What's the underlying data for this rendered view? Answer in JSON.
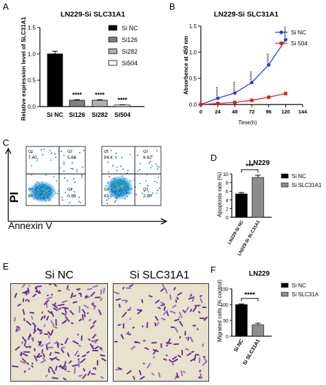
{
  "colors": {
    "black": "#000000",
    "grey": "#808080",
    "blue": "#1f3fd6",
    "red": "#e0201a",
    "stain": "#6a2c9a",
    "membrane": "#e6e2cc"
  },
  "panels": [
    {
      "letter": "A"
    },
    {
      "letter": "B"
    },
    {
      "letter": "C"
    },
    {
      "letter": "D"
    },
    {
      "letter": "E"
    },
    {
      "letter": "F"
    }
  ],
  "chart_data": [
    {
      "panel": "A",
      "type": "bar",
      "title": "LN229-Si SLC31A1",
      "ylabel": "Relative expression level of SLC31A1",
      "ylim": [
        0,
        1.5
      ],
      "yticks": [
        "0.0",
        "0.5",
        "1.0",
        "1.5"
      ],
      "categories": [
        "Si NC",
        "Si126",
        "Si282",
        "Si504"
      ],
      "values": [
        1.0,
        0.12,
        0.12,
        0.03
      ],
      "errors": [
        0.05,
        0.01,
        0.01,
        0.005
      ],
      "significance": [
        "",
        "****",
        "****",
        "****"
      ],
      "legend": [
        "Si NC",
        "Si126",
        "Si282",
        "Si504"
      ],
      "legend_position": "top-right"
    },
    {
      "panel": "B",
      "type": "line",
      "title": "LN229-Si SLC31A1",
      "xlabel": "Time(h)",
      "ylabel": "Absorbence at 450 nm",
      "xlim": [
        0,
        144
      ],
      "ylim": [
        0,
        1.5
      ],
      "xticks": [
        "0",
        "24",
        "48",
        "72",
        "96",
        "120",
        "144"
      ],
      "yticks": [
        "0.0",
        "0.5",
        "1.0",
        "1.5"
      ],
      "x": [
        0,
        24,
        48,
        72,
        96,
        120
      ],
      "series": [
        {
          "name": "Si NC",
          "values": [
            0.0,
            0.12,
            0.22,
            0.42,
            0.76,
            1.24
          ]
        },
        {
          "name": "Si 504",
          "values": [
            0.0,
            0.02,
            0.04,
            0.08,
            0.14,
            0.21
          ]
        }
      ],
      "significance": [
        "",
        "*****",
        "*****",
        "*****",
        "*****",
        "******"
      ],
      "legend_position": "top-right"
    },
    {
      "panel": "C",
      "type": "scatter",
      "xlabel": "Annexin V",
      "ylabel": "PI",
      "plots": [
        {
          "quadrants": {
            "Q1": "7.40",
            "Q2": "5.66",
            "Q3": "0.98",
            "Q4": "86.0"
          }
        },
        {
          "quadrants": {
            "Q1": "24.4",
            "Q2": "9.62",
            "Q3": "2.90",
            "Q4": "63.0"
          }
        }
      ]
    },
    {
      "panel": "D",
      "type": "bar",
      "title": "LN229",
      "ylabel": "Apoptosis rate (%)",
      "ylim": [
        0,
        10
      ],
      "yticks": [
        "0",
        "2",
        "4",
        "6",
        "8",
        "10"
      ],
      "categories": [
        "LN229-Si NC",
        "LN229-Si SLC31A1"
      ],
      "values": [
        5.4,
        9.2
      ],
      "errors": [
        0.3,
        0.5
      ],
      "significance": "***",
      "legend": [
        "Si NC",
        "Si SLC31A1"
      ],
      "legend_position": "right"
    },
    {
      "panel": "E",
      "type": "table",
      "images": [
        {
          "label": "Si NC"
        },
        {
          "label": "Si SLC31A1"
        }
      ]
    },
    {
      "panel": "F",
      "type": "bar",
      "title": "LN229",
      "ylabel": "Migrated cells (% control)",
      "ylim": [
        0,
        150
      ],
      "yticks": [
        "0",
        "50",
        "100",
        "150"
      ],
      "categories": [
        "Si NC",
        "Si SLC31A1"
      ],
      "values": [
        100,
        36
      ],
      "errors": [
        2,
        5
      ],
      "significance": "****",
      "legend": [
        "Si NC",
        "Si SLC31A"
      ],
      "legend_position": "right"
    }
  ]
}
